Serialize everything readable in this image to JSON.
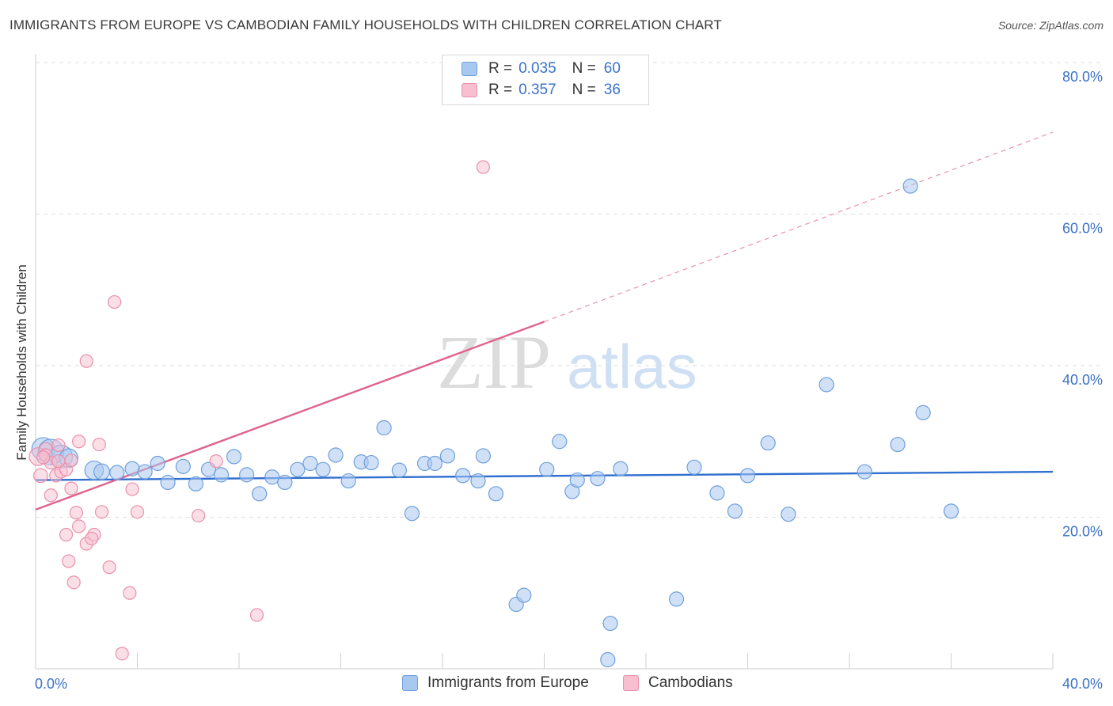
{
  "header": {
    "title": "IMMIGRANTS FROM EUROPE VS CAMBODIAN FAMILY HOUSEHOLDS WITH CHILDREN CORRELATION CHART",
    "source": "Source: ZipAtlas.com"
  },
  "legend": {
    "rows": [
      {
        "r_label": "R =",
        "r_value": "0.035",
        "n_label": "N =",
        "n_value": "60"
      },
      {
        "r_label": "R =",
        "r_value": "0.357",
        "n_label": "N =",
        "n_value": "36"
      }
    ]
  },
  "bottom_legend": {
    "europe": "Immigrants from Europe",
    "cambodians": "Cambodians"
  },
  "watermark": {
    "zip": "ZIP",
    "atlas": "atlas"
  },
  "colors": {
    "europe_fill": "#a9c8f0",
    "europe_stroke": "#6f9fdc",
    "europe_line": "#2f6fd0",
    "cambodian_fill": "#f7bfd0",
    "cambodian_stroke": "#e990ad",
    "cambodian_line": "#e0628c",
    "tick_text": "#3a72c8"
  },
  "chart_data": {
    "type": "scatter",
    "title": "IMMIGRANTS FROM EUROPE VS CAMBODIAN FAMILY HOUSEHOLDS WITH CHILDREN CORRELATION CHART",
    "xlabel": "",
    "ylabel": "Family Households with Children",
    "xlim": [
      0,
      40
    ],
    "ylim": [
      0,
      80
    ],
    "x_tick_labels": [
      "0.0%",
      "40.0%"
    ],
    "y_ticks": [
      20,
      40,
      60,
      80
    ],
    "y_tick_labels": [
      "20.0%",
      "40.0%",
      "60.0%",
      "80.0%"
    ],
    "grid": true,
    "series": [
      {
        "name": "Immigrants from Europe",
        "color": "#a9c8f0",
        "R": 0.035,
        "N": 60,
        "trend": {
          "x0": 0,
          "y0": 24.9,
          "x1": 40,
          "y1": 26.0
        },
        "points": [
          [
            0.3,
            29.0,
            1.6
          ],
          [
            0.6,
            28.6,
            1.8
          ],
          [
            1.0,
            28.0,
            1.6
          ],
          [
            1.3,
            27.8,
            1.3
          ],
          [
            2.3,
            26.2,
            1.3
          ],
          [
            2.6,
            26.0,
            1.1
          ],
          [
            3.2,
            25.9,
            1.0
          ],
          [
            3.8,
            26.4,
            1.0
          ],
          [
            4.3,
            26.0,
            1.0
          ],
          [
            4.8,
            27.1,
            1.0
          ],
          [
            5.2,
            24.6,
            1.0
          ],
          [
            5.8,
            26.7,
            1.0
          ],
          [
            6.3,
            24.4,
            1.0
          ],
          [
            6.8,
            26.3,
            1.0
          ],
          [
            7.3,
            25.6,
            1.0
          ],
          [
            7.8,
            28.0,
            1.0
          ],
          [
            8.3,
            25.6,
            1.0
          ],
          [
            8.8,
            23.1,
            1.0
          ],
          [
            9.3,
            25.3,
            1.0
          ],
          [
            9.8,
            24.6,
            1.0
          ],
          [
            10.3,
            26.3,
            1.0
          ],
          [
            10.8,
            27.1,
            1.0
          ],
          [
            11.3,
            26.3,
            1.0
          ],
          [
            11.8,
            28.2,
            1.0
          ],
          [
            12.3,
            24.8,
            1.0
          ],
          [
            12.8,
            27.3,
            1.0
          ],
          [
            13.2,
            27.2,
            1.0
          ],
          [
            13.7,
            31.8,
            1.0
          ],
          [
            14.3,
            26.2,
            1.0
          ],
          [
            14.8,
            20.5,
            1.0
          ],
          [
            15.3,
            27.1,
            1.0
          ],
          [
            15.7,
            27.1,
            1.0
          ],
          [
            16.2,
            28.1,
            1.0
          ],
          [
            16.8,
            25.5,
            1.0
          ],
          [
            17.4,
            24.8,
            1.0
          ],
          [
            17.6,
            28.1,
            1.0
          ],
          [
            18.1,
            23.1,
            1.0
          ],
          [
            18.9,
            8.5,
            1.0
          ],
          [
            19.2,
            9.7,
            1.0
          ],
          [
            20.1,
            26.3,
            1.0
          ],
          [
            20.6,
            30.0,
            1.0
          ],
          [
            21.1,
            23.4,
            1.0
          ],
          [
            21.3,
            24.9,
            1.0
          ],
          [
            22.1,
            25.1,
            1.0
          ],
          [
            22.6,
            6.0,
            1.0
          ],
          [
            23.0,
            26.4,
            1.0
          ],
          [
            22.5,
            1.2,
            1.0
          ],
          [
            25.2,
            9.2,
            1.0
          ],
          [
            25.9,
            26.6,
            1.0
          ],
          [
            26.8,
            23.2,
            1.0
          ],
          [
            27.5,
            20.8,
            1.0
          ],
          [
            28.0,
            25.5,
            1.0
          ],
          [
            28.8,
            29.8,
            1.0
          ],
          [
            29.6,
            20.4,
            1.0
          ],
          [
            31.1,
            37.5,
            1.0
          ],
          [
            32.6,
            26.0,
            1.0
          ],
          [
            33.9,
            29.6,
            1.0
          ],
          [
            34.4,
            63.7,
            1.0
          ],
          [
            34.9,
            33.8,
            1.0
          ],
          [
            36.0,
            20.8,
            1.0
          ]
        ]
      },
      {
        "name": "Cambodians",
        "color": "#f7bfd0",
        "R": 0.357,
        "N": 36,
        "trend": {
          "x0": 0,
          "y0": 21.0,
          "x1": 20.0,
          "y1": 45.8
        },
        "trend_dashed": {
          "x0": 20.0,
          "y0": 45.8,
          "x1": 40,
          "y1": 70.8
        },
        "points": [
          [
            0.1,
            28.0,
            1.4
          ],
          [
            0.2,
            25.5,
            1.1
          ],
          [
            0.4,
            29.0,
            1.0
          ],
          [
            0.4,
            28.2,
            1.0
          ],
          [
            0.6,
            27.2,
            1.0
          ],
          [
            0.8,
            25.5,
            1.0
          ],
          [
            0.9,
            29.5,
            1.0
          ],
          [
            1.0,
            26.0,
            1.0
          ],
          [
            1.2,
            26.3,
            1.0
          ],
          [
            1.4,
            27.5,
            1.0
          ],
          [
            0.6,
            22.9,
            1.0
          ],
          [
            1.4,
            23.8,
            1.0
          ],
          [
            1.6,
            20.6,
            1.0
          ],
          [
            1.7,
            18.8,
            1.0
          ],
          [
            1.2,
            17.7,
            1.0
          ],
          [
            2.0,
            16.5,
            1.0
          ],
          [
            2.3,
            17.7,
            1.0
          ],
          [
            2.2,
            17.2,
            1.0
          ],
          [
            1.3,
            14.2,
            1.0
          ],
          [
            1.5,
            11.4,
            1.0
          ],
          [
            1.7,
            30.0,
            1.0
          ],
          [
            2.5,
            29.6,
            1.0
          ],
          [
            2.6,
            20.7,
            1.0
          ],
          [
            2.9,
            13.4,
            1.0
          ],
          [
            3.1,
            48.4,
            1.0
          ],
          [
            2.0,
            40.6,
            1.0
          ],
          [
            3.4,
            2.0,
            1.0
          ],
          [
            3.7,
            10.0,
            1.0
          ],
          [
            3.8,
            23.7,
            1.0
          ],
          [
            4.0,
            20.7,
            1.0
          ],
          [
            6.4,
            20.2,
            1.0
          ],
          [
            7.1,
            27.4,
            1.0
          ],
          [
            8.7,
            7.1,
            1.0
          ],
          [
            17.6,
            66.2,
            1.0
          ],
          [
            0.3,
            27.9,
            1.0
          ],
          [
            0.9,
            27.4,
            1.0
          ]
        ]
      }
    ]
  }
}
